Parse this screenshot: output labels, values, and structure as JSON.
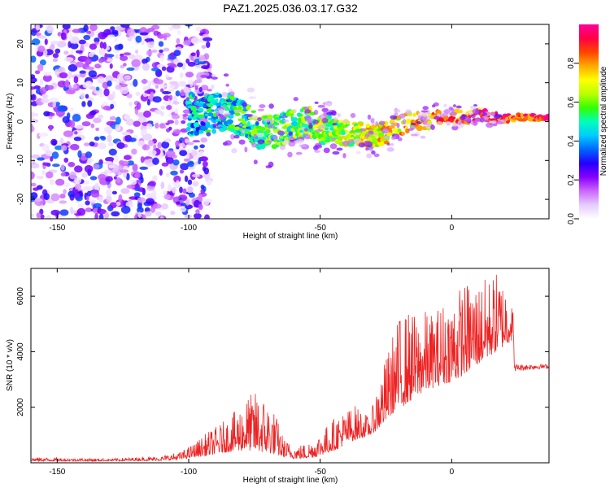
{
  "title": "PAZ1.2025.036.03.17.G32",
  "chart_data": [
    {
      "type": "heatmap",
      "title": "",
      "xlabel": "Height of straight line (km)",
      "ylabel": "Frequency (Hz)",
      "xlim": [
        -160,
        37
      ],
      "ylim": [
        -25,
        25
      ],
      "xticks": [
        "-150",
        "-100",
        "-50",
        "0"
      ],
      "yticks": [
        "20",
        "10",
        "0",
        "-10",
        "-20"
      ],
      "colorbar": {
        "label": "Normalized spectral amplitude",
        "range": [
          0,
          1
        ],
        "ticks": [
          "0.0",
          "0.2",
          "0.4",
          "0.6",
          "0.8"
        ],
        "colors": [
          "#ffffff",
          "#e6ccff",
          "#cc66ff",
          "#8800ff",
          "#2200ff",
          "#0066ff",
          "#00ccff",
          "#00ffbb",
          "#33ff00",
          "#bbff00",
          "#ffff00",
          "#ffaa00",
          "#ff4400",
          "#ff0044",
          "#ff0099"
        ]
      },
      "signal_ridge": {
        "x": [
          -100,
          -95,
          -90,
          -85,
          -80,
          -75,
          -70,
          -65,
          -60,
          -55,
          -50,
          -45,
          -40,
          -35,
          -30,
          -25,
          -20,
          -15,
          -10,
          -5,
          0,
          5,
          10,
          15,
          20,
          25,
          30,
          37
        ],
        "frequency": [
          2,
          1,
          2,
          3,
          1,
          -2,
          -3,
          -2,
          -1,
          0,
          -2,
          -2,
          -3,
          -3,
          -4,
          -3,
          -1,
          0,
          0,
          1,
          1,
          1,
          2,
          1,
          1,
          1,
          1,
          1
        ]
      },
      "noise_region_x": [
        -160,
        -100
      ]
    },
    {
      "type": "line",
      "title": "",
      "xlabel": "Height of straight line (km)",
      "ylabel": "SNR (10 * v/v)",
      "xlim": [
        -160,
        37
      ],
      "ylim": [
        0,
        7000
      ],
      "xticks": [
        "-150",
        "-100",
        "-50",
        "0"
      ],
      "yticks": [
        "2000",
        "4000",
        "6000"
      ],
      "color": "#ee2222",
      "envelope": {
        "x": [
          -160,
          -130,
          -110,
          -103,
          -98,
          -93,
          -88,
          -83,
          -78,
          -74,
          -70,
          -67,
          -64,
          -60,
          -56,
          -52,
          -49,
          -46,
          -43,
          -40,
          -37,
          -34,
          -31,
          -28,
          -25,
          -22,
          -19,
          -16,
          -13,
          -10,
          -7,
          -4,
          -1,
          2,
          5,
          8,
          11,
          14,
          17,
          20,
          23,
          24,
          26,
          30,
          37
        ],
        "low": [
          60,
          60,
          80,
          120,
          200,
          250,
          350,
          400,
          450,
          400,
          350,
          300,
          200,
          150,
          150,
          200,
          300,
          400,
          500,
          700,
          800,
          900,
          1000,
          1200,
          1500,
          1800,
          2000,
          2200,
          2400,
          2600,
          2700,
          2800,
          2900,
          3000,
          3200,
          3400,
          3600,
          3800,
          4000,
          4200,
          4400,
          3300,
          3300,
          3350,
          3400
        ],
        "high": [
          200,
          150,
          250,
          400,
          700,
          1100,
          1400,
          1800,
          2400,
          2600,
          2300,
          1800,
          900,
          600,
          700,
          900,
          1200,
          1500,
          1800,
          1900,
          2100,
          1900,
          1600,
          3000,
          3800,
          4800,
          5500,
          5500,
          5300,
          5500,
          5400,
          5800,
          6000,
          6300,
          6500,
          6600,
          6600,
          6700,
          6900,
          6600,
          6400,
          3550,
          3550,
          3550,
          3550
        ]
      }
    }
  ]
}
